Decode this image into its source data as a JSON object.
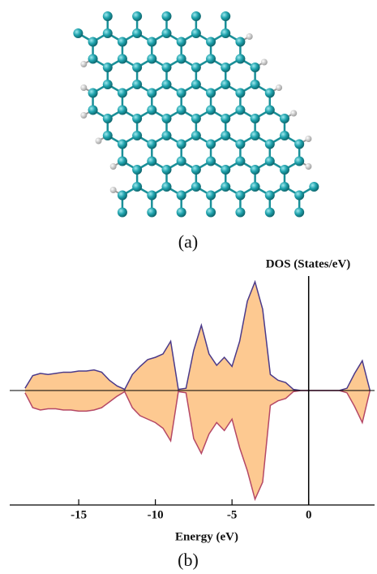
{
  "figure": {
    "label_a": "(a)",
    "label_b": "(b)"
  },
  "chart_data": {
    "type": "area",
    "ylabel": "DOS (States/eV)",
    "xlabel": "Energy (eV)",
    "x": [
      -18.5,
      -18,
      -17.5,
      -17,
      -16.5,
      -16,
      -15.5,
      -15,
      -14.5,
      -14,
      -13.5,
      -13,
      -12.5,
      -12,
      -11.5,
      -11,
      -10.5,
      -10,
      -9.5,
      -9,
      -8.5,
      -8,
      -7.5,
      -7,
      -6.5,
      -6,
      -5.5,
      -5,
      -4.5,
      -4,
      -3.5,
      -3,
      -2.5,
      -2,
      -1.5,
      -1,
      -0.5,
      0,
      0.5,
      1,
      1.5,
      2,
      2.5,
      3,
      3.5,
      4
    ],
    "series": [
      {
        "color": "#4b3a8a",
        "fill": "#fdc991",
        "values": [
          0.2,
          1.3,
          1.5,
          1.4,
          1.5,
          1.6,
          1.6,
          1.7,
          1.7,
          1.8,
          1.6,
          0.9,
          0.4,
          0.1,
          1.4,
          2.1,
          2.7,
          2.9,
          3.2,
          4.3,
          0.1,
          0.2,
          3.5,
          5.7,
          3.2,
          2.2,
          2.9,
          2.1,
          4.3,
          7.8,
          9.5,
          7.1,
          1.4,
          0.9,
          0.7,
          0.1,
          0,
          0,
          0,
          0,
          0,
          0,
          0.2,
          1.5,
          2.6,
          0
        ]
      },
      {
        "color": "#b54866",
        "fill": "#fdc991",
        "values": [
          -0.2,
          -1.5,
          -1.7,
          -1.6,
          -1.6,
          -1.7,
          -1.7,
          -1.8,
          -1.8,
          -1.7,
          -1.5,
          -1.0,
          -0.5,
          -0.1,
          -1.5,
          -2.2,
          -2.5,
          -2.8,
          -3.3,
          -4.4,
          -0.1,
          -0.2,
          -4.2,
          -5.5,
          -3.8,
          -2.8,
          -3.5,
          -2.5,
          -5.0,
          -7.0,
          -9.5,
          -8.0,
          -1.3,
          -0.9,
          -0.7,
          -0.1,
          0,
          0,
          0,
          0,
          0,
          0,
          -0.2,
          -1.4,
          -2.8,
          0
        ]
      }
    ],
    "xlim": [
      -19.5,
      4.3
    ],
    "ylim": [
      -10,
      10
    ],
    "xticks": [
      -15,
      -10,
      -5,
      0
    ]
  }
}
